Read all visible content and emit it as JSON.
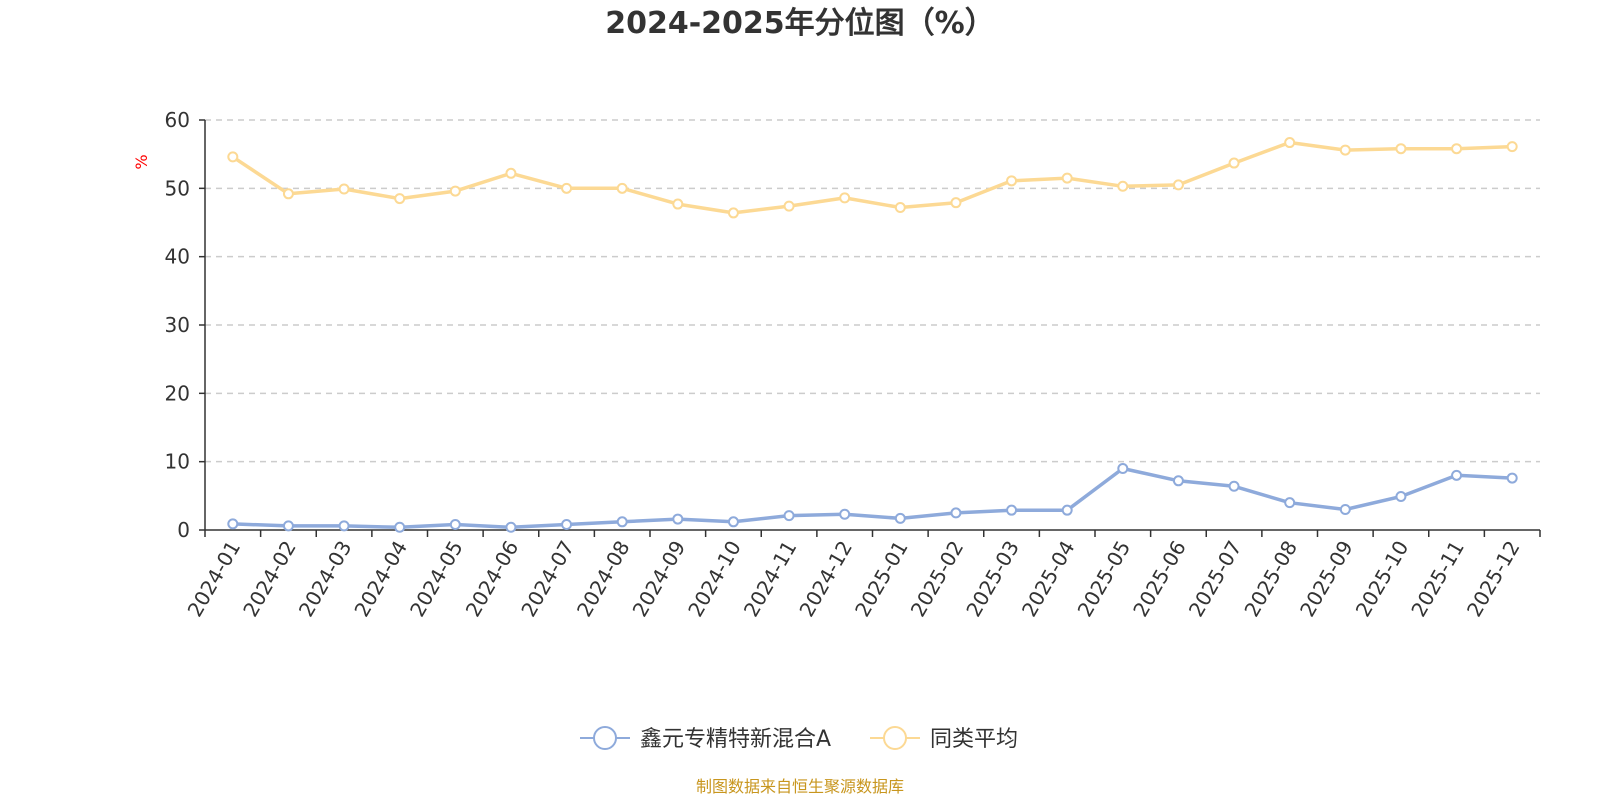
{
  "chart_data": {
    "type": "line",
    "title": "2024-2025年分位图（%）",
    "ylabel": "%",
    "ylim": [
      0,
      60
    ],
    "yticks": [
      0,
      10,
      20,
      30,
      40,
      50,
      60
    ],
    "grid": true,
    "legend_position": "bottom",
    "categories": [
      "2024-01",
      "2024-02",
      "2024-03",
      "2024-04",
      "2024-05",
      "2024-06",
      "2024-07",
      "2024-08",
      "2024-09",
      "2024-10",
      "2024-11",
      "2024-12",
      "2025-01",
      "2025-02",
      "2025-03",
      "2025-04",
      "2025-05",
      "2025-06",
      "2025-07",
      "2025-08",
      "2025-09",
      "2025-10",
      "2025-11",
      "2025-12"
    ],
    "series": [
      {
        "name": "鑫元专精特新混合A",
        "color": "#8eaadb",
        "values": [
          0.9,
          0.6,
          0.6,
          0.4,
          0.8,
          0.4,
          0.8,
          1.2,
          1.6,
          1.2,
          2.1,
          2.3,
          1.7,
          2.5,
          2.9,
          2.9,
          9.0,
          7.2,
          6.4,
          4.0,
          3.0,
          4.9,
          8.0,
          7.6
        ]
      },
      {
        "name": "同类平均",
        "color": "#fcd994",
        "values": [
          54.6,
          49.2,
          49.9,
          48.5,
          49.6,
          52.2,
          50.0,
          50.0,
          47.7,
          46.4,
          47.4,
          48.6,
          47.2,
          47.9,
          51.1,
          51.5,
          50.3,
          50.5,
          53.7,
          56.7,
          55.6,
          55.8,
          55.8,
          56.1
        ]
      }
    ]
  },
  "source_text": "制图数据来自恒生聚源数据库",
  "colors": {
    "axis": "#333333",
    "grid": "#cccccc",
    "ylabel": "#ff0000",
    "source": "#c8961e"
  }
}
